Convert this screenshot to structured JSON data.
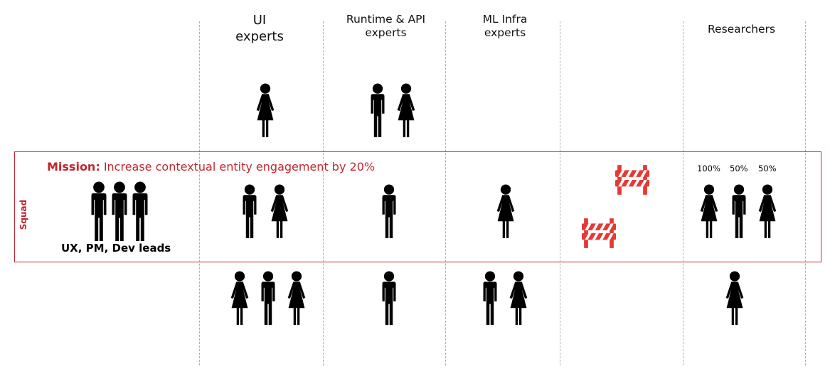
{
  "columns": {
    "ui": "UI\nexperts",
    "runtime": "Runtime & API\nexperts",
    "mlinfra": "ML Infra\nexperts",
    "researchers": "Researchers"
  },
  "squad": {
    "label": "Squad",
    "mission_prefix": "Mission:",
    "mission_text": "Increase contextual entity engagement by 20%",
    "leads_label": "UX, PM, Dev leads"
  },
  "allocations": [
    "100%",
    "50%",
    "50%"
  ],
  "icons": {
    "man": "person-male-icon",
    "woman": "person-female-icon",
    "barrier": "roadblock-barrier-icon"
  },
  "colors": {
    "accent": "#c0272d",
    "barrier": "#e53935",
    "figure": "#000000"
  }
}
